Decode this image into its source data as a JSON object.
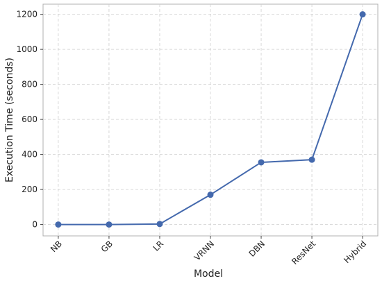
{
  "chart_data": {
    "type": "line",
    "xlabel": "Model",
    "ylabel": "Execution Time (seconds)",
    "categories": [
      "NB",
      "GB",
      "LR",
      "VRNN",
      "DBN",
      "ResNet",
      "Hybrid"
    ],
    "values": [
      0,
      0,
      3,
      170,
      355,
      370,
      1200
    ],
    "color": "#4469ad",
    "ylim": [
      -65,
      1258
    ],
    "yticks": [
      0,
      200,
      400,
      600,
      800,
      1000,
      1200
    ],
    "grid": true
  }
}
